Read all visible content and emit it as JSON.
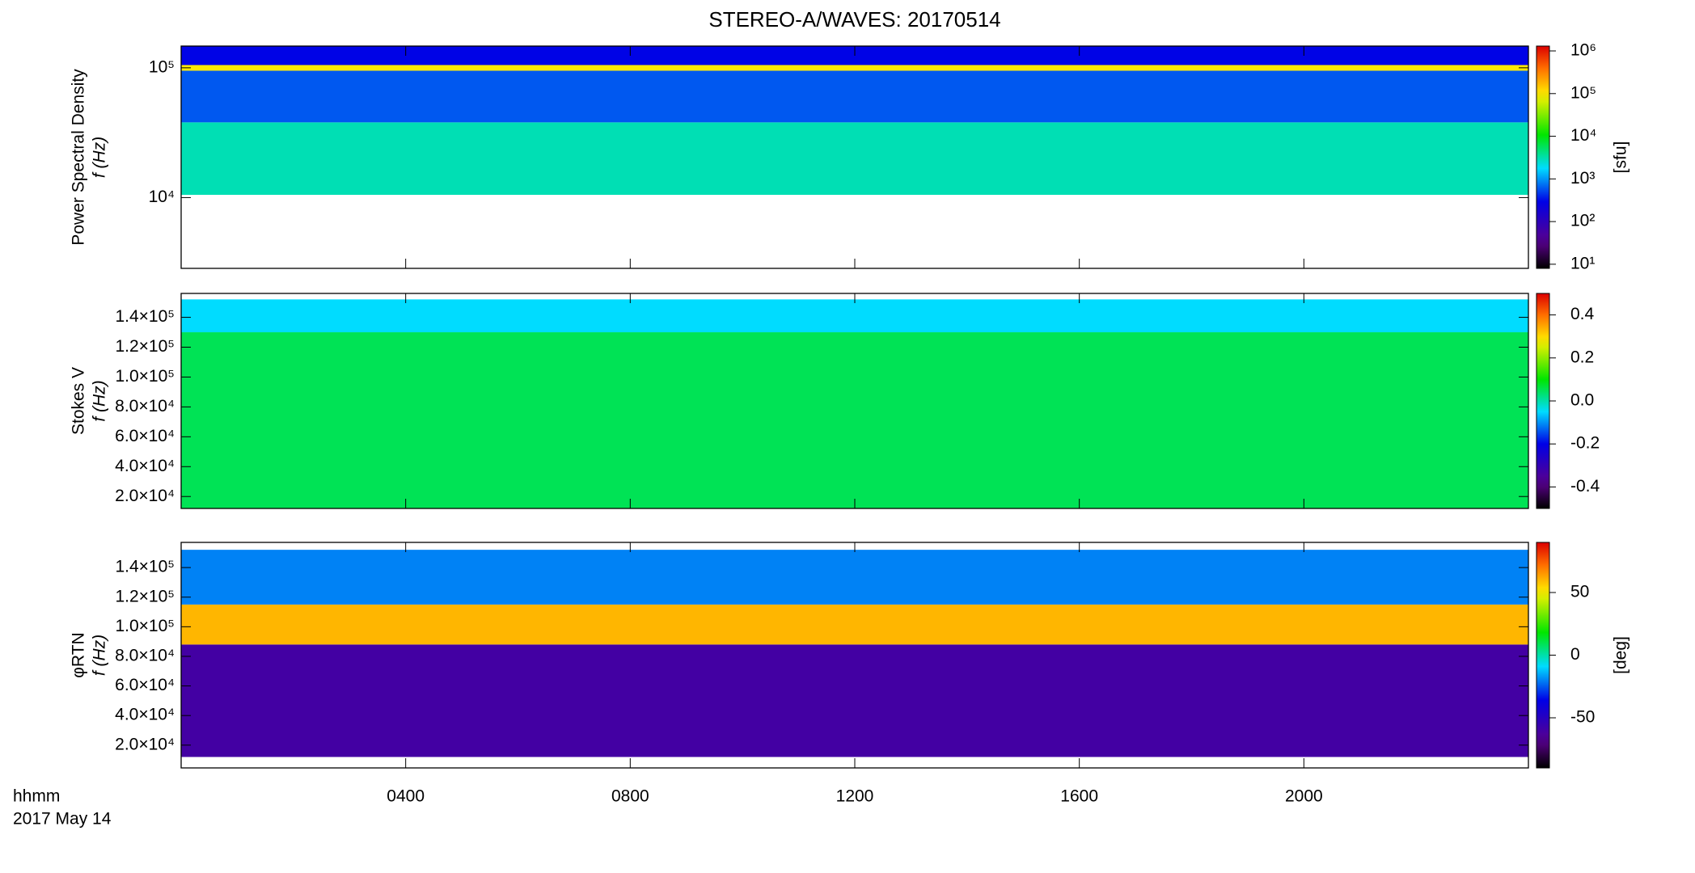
{
  "chart_data": [
    {
      "type": "spectrogram",
      "title": "STEREO-A/WAVES: 20170514",
      "ylabel": "Power Spectral Density",
      "ylabel2": "f (Hz)",
      "log": true,
      "ylim": [
        2850,
        147000
      ],
      "yticks": [
        {
          "value": 10000,
          "label": "10⁴"
        },
        {
          "value": 100000,
          "label": "10⁵"
        }
      ],
      "xlim": [
        0,
        24
      ],
      "bands": {
        "edges": [
          10500,
          38000,
          95000,
          105000,
          147000
        ],
        "values": [
          3000,
          600,
          100000,
          300
        ]
      },
      "colorbar": {
        "label": "[sfu]",
        "log": true,
        "lim": [
          8,
          1300000
        ],
        "ticks": [
          {
            "value": 10,
            "label": "10¹"
          },
          {
            "value": 100,
            "label": "10²"
          },
          {
            "value": 1000,
            "label": "10³"
          },
          {
            "value": 10000,
            "label": "10⁴"
          },
          {
            "value": 100000,
            "label": "10⁵"
          },
          {
            "value": 1000000,
            "label": "10⁶"
          }
        ]
      }
    },
    {
      "type": "spectrogram",
      "ylabel": "Stokes V",
      "ylabel2": "f (Hz)",
      "log": false,
      "ylim": [
        12000,
        156000
      ],
      "yticks": [
        {
          "value": 20000,
          "label": "2.0×10⁴"
        },
        {
          "value": 40000,
          "label": "4.0×10⁴"
        },
        {
          "value": 60000,
          "label": "6.0×10⁴"
        },
        {
          "value": 80000,
          "label": "8.0×10⁴"
        },
        {
          "value": 100000,
          "label": "1.0×10⁵"
        },
        {
          "value": 120000,
          "label": "1.2×10⁵"
        },
        {
          "value": 140000,
          "label": "1.4×10⁵"
        }
      ],
      "xlim": [
        0,
        24
      ],
      "bands": {
        "edges": [
          12000,
          130000,
          152000
        ],
        "values": [
          0.05,
          -0.05
        ]
      },
      "colorbar": {
        "log": false,
        "lim": [
          -0.5,
          0.5
        ],
        "ticks": [
          -0.4,
          -0.2,
          {
            "value": 0,
            "label": "0.0"
          },
          0.2,
          0.4
        ]
      }
    },
    {
      "type": "spectrogram",
      "ylabel": "φRTN",
      "ylabel2": "f (Hz)",
      "log": false,
      "ylim": [
        4600,
        157000
      ],
      "yticks": [
        {
          "value": 20000,
          "label": "2.0×10⁴"
        },
        {
          "value": 40000,
          "label": "4.0×10⁴"
        },
        {
          "value": 60000,
          "label": "6.0×10⁴"
        },
        {
          "value": 80000,
          "label": "8.0×10⁴"
        },
        {
          "value": 100000,
          "label": "1.0×10⁵"
        },
        {
          "value": 120000,
          "label": "1.2×10⁵"
        },
        {
          "value": 140000,
          "label": "1.4×10⁵"
        }
      ],
      "xlim": [
        0,
        24
      ],
      "xticks": [
        {
          "value": 4,
          "label": "0400"
        },
        {
          "value": 8,
          "label": "0800"
        },
        {
          "value": 12,
          "label": "1200"
        },
        {
          "value": 16,
          "label": "1600"
        },
        {
          "value": 20,
          "label": "2000"
        }
      ],
      "xlabel": "hhmm",
      "xlabel2": "2017 May 14",
      "bands": {
        "edges": [
          12000,
          88000,
          115000,
          152000
        ],
        "values": [
          -60,
          60,
          -20
        ]
      },
      "colorbar": {
        "label": "[deg]",
        "log": false,
        "lim": [
          -90,
          90
        ],
        "ticks": [
          -50,
          0,
          50
        ]
      }
    }
  ]
}
